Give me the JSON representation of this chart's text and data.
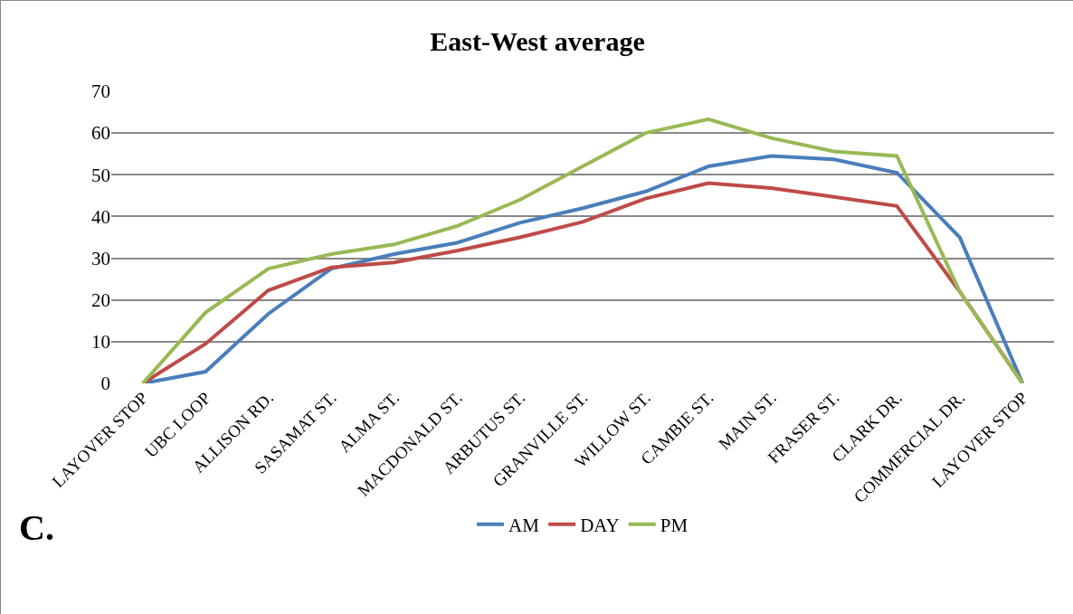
{
  "chart_data": {
    "type": "line",
    "title": "East-West average",
    "categories": [
      "LAYOVER STOP",
      "UBC LOOP",
      "ALLISON RD.",
      "SASAMAT ST.",
      "ALMA ST.",
      "MACDONALD ST.",
      "ARBUTUS ST.",
      "GRANVILLE ST.",
      "WILLOW ST.",
      "CAMBIE ST.",
      "MAIN ST.",
      "FRASER ST.",
      "CLARK DR.",
      "COMMERCIAL DR.",
      "LAYOVER STOP"
    ],
    "series": [
      {
        "name": "AM",
        "color": "#4a7ebb",
        "values": [
          0,
          2.8,
          16.7,
          27.5,
          31,
          33.7,
          38.5,
          42,
          46,
          52,
          54.5,
          53.7,
          50.5,
          35,
          0
        ]
      },
      {
        "name": "DAY",
        "color": "#be4b48",
        "values": [
          0,
          9.5,
          22.3,
          27.8,
          29,
          31.8,
          35,
          38.7,
          44.3,
          48,
          46.8,
          44.7,
          42.5,
          22,
          0
        ]
      },
      {
        "name": "PM",
        "color": "#98b954",
        "values": [
          0,
          17,
          27.5,
          31,
          33.3,
          37.7,
          44,
          52,
          60,
          63.3,
          58.8,
          55.6,
          54.5,
          22,
          0
        ]
      }
    ],
    "ylim": [
      0,
      70
    ],
    "yticks": [
      0,
      10,
      20,
      30,
      40,
      50,
      60,
      70
    ],
    "grid": "y",
    "legend": "bottom",
    "marker": "none",
    "line_style": "solid",
    "annotations": [
      "C."
    ]
  }
}
